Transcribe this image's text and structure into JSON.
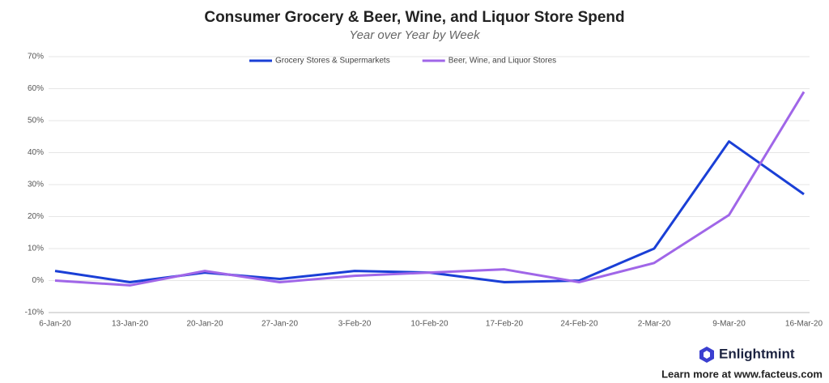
{
  "chart_data": {
    "type": "line",
    "title": "Consumer Grocery & Beer, Wine, and Liquor Store Spend",
    "subtitle": "Year over Year by Week",
    "categories": [
      "6-Jan-20",
      "13-Jan-20",
      "20-Jan-20",
      "27-Jan-20",
      "3-Feb-20",
      "10-Feb-20",
      "17-Feb-20",
      "24-Feb-20",
      "2-Mar-20",
      "9-Mar-20",
      "16-Mar-20"
    ],
    "series": [
      {
        "name": "Grocery Stores & Supermarkets",
        "color": "#1a3fd6",
        "values": [
          3,
          -0.5,
          2.5,
          0.5,
          3,
          2.5,
          -0.5,
          0,
          10,
          43.5,
          27
        ]
      },
      {
        "name": "Beer, Wine, and Liquor Stores",
        "color": "#a066e8",
        "values": [
          0,
          -1.5,
          3,
          -0.5,
          1.5,
          2.5,
          3.5,
          -0.5,
          5.5,
          20.5,
          59
        ]
      }
    ],
    "ylim": [
      -10,
      70
    ],
    "yticks": [
      {
        "value": -10,
        "label": "-10%"
      },
      {
        "value": 0,
        "label": "0%"
      },
      {
        "value": 10,
        "label": "10%"
      },
      {
        "value": 20,
        "label": "20%"
      },
      {
        "value": 30,
        "label": "30%"
      },
      {
        "value": 40,
        "label": "40%"
      },
      {
        "value": 50,
        "label": "50%"
      },
      {
        "value": 60,
        "label": "60%"
      },
      {
        "value": 70,
        "label": "70%"
      }
    ],
    "grid": true,
    "legend": "top"
  },
  "branding": {
    "name": "Enlightmint",
    "link_text": "Learn more at www.facteus.com"
  }
}
